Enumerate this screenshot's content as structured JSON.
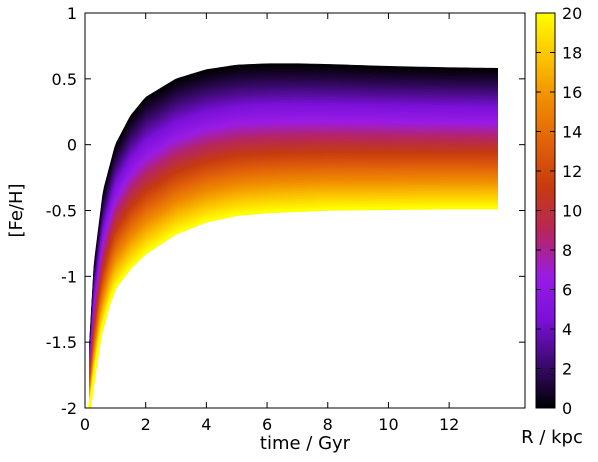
{
  "chart_data": {
    "type": "line",
    "xlabel": "time / Gyr",
    "ylabel": "[Fe/H]",
    "colorbar_label": "R / kpc",
    "xlim": [
      0,
      14.5
    ],
    "ylim": [
      -2,
      1
    ],
    "x_ticks": [
      0,
      2,
      4,
      6,
      8,
      10,
      12
    ],
    "y_ticks": [
      -2,
      -1.5,
      -1,
      -0.5,
      0,
      0.5,
      1
    ],
    "x_tick_labels": [
      "0",
      "2",
      "4",
      "6",
      "8",
      "10",
      "12"
    ],
    "y_tick_labels": [
      "-2",
      "-1.5",
      "-1",
      "-0.5",
      "0",
      "0.5",
      "1"
    ],
    "colorbar": {
      "range": [
        0,
        20
      ],
      "ticks": [
        0,
        2,
        4,
        6,
        8,
        10,
        12,
        14,
        16,
        18,
        20
      ],
      "tick_labels": [
        "0",
        "2",
        "4",
        "6",
        "8",
        "10",
        "12",
        "14",
        "16",
        "18",
        "20"
      ],
      "colormap": [
        "#000000",
        "#3a0a6e",
        "#7a10d8",
        "#9a1be6",
        "#b6265f",
        "#c63a10",
        "#e0600a",
        "#f08c00",
        "#fcc400",
        "#ffff00"
      ]
    },
    "series_description_radii": [
      0,
      20
    ],
    "envelope": {
      "upper_R0": {
        "x": [
          0.15,
          0.3,
          0.6,
          1.0,
          1.5,
          2.0,
          3.0,
          4.0,
          5.0,
          6.0,
          7.0,
          8.0,
          10.0,
          12.0,
          13.6
        ],
        "y": [
          -1.5,
          -0.9,
          -0.35,
          0.0,
          0.22,
          0.36,
          0.5,
          0.57,
          0.605,
          0.615,
          0.615,
          0.61,
          0.595,
          0.585,
          0.58
        ]
      },
      "lower_R20": {
        "x": [
          0.15,
          0.3,
          0.5,
          0.8,
          1.0,
          1.5,
          2.0,
          3.0,
          4.0,
          5.0,
          6.0,
          8.0,
          10.0,
          12.0,
          13.6
        ],
        "y": [
          -2.0,
          -1.75,
          -1.45,
          -1.2,
          -1.08,
          -0.93,
          -0.82,
          -0.67,
          -0.58,
          -0.53,
          -0.51,
          -0.49,
          -0.485,
          -0.48,
          -0.48
        ]
      }
    }
  }
}
